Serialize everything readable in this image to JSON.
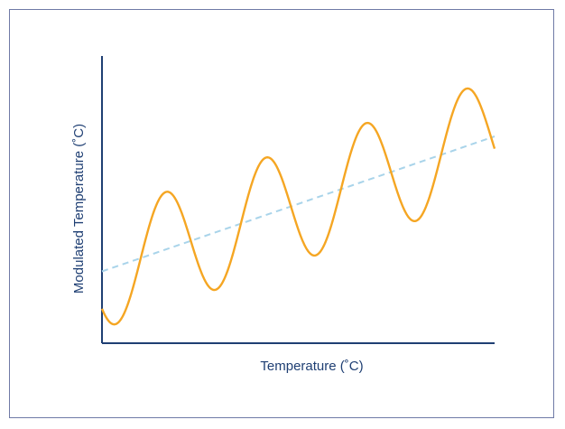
{
  "chart_data": {
    "type": "line",
    "title": "",
    "xlabel": "Temperature (˚C)",
    "ylabel": "Modulated Temperature (˚C)",
    "xlim": [
      0,
      100
    ],
    "ylim": [
      0,
      100
    ],
    "grid": false,
    "show_ticks": false,
    "series": [
      {
        "style": "solid",
        "color": "#f5a623",
        "function": "sine_plus_trend",
        "x_range": [
          0,
          100
        ],
        "baseline_at_x0": 25,
        "baseline_at_x100": 72,
        "amplitude": 20,
        "period": 25.5,
        "phase_min_at_x": 3.5
      },
      {
        "style": "dashed",
        "color": "#a9d4ea",
        "function": "linear",
        "x": [
          0,
          100
        ],
        "y": [
          25,
          72
        ]
      }
    ]
  },
  "colors": {
    "axis": "#1f3f73",
    "frame": "#6f7aa6",
    "label": "#1f3f73"
  }
}
